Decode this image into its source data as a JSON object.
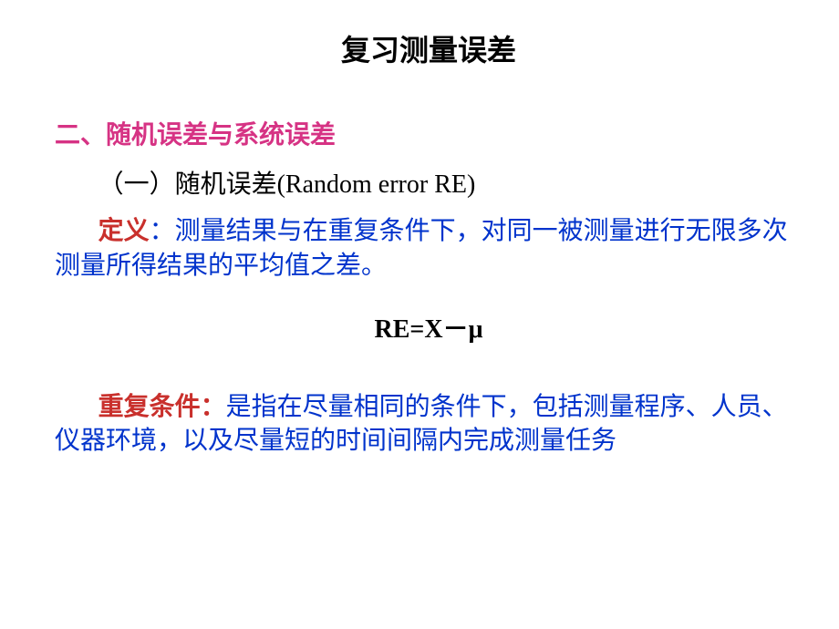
{
  "title": {
    "text": "复习测量误差",
    "color": "#000000",
    "fontsize": 32
  },
  "section": {
    "heading_text": "二、随机误差与系统误差",
    "heading_color": "#d63384",
    "heading_fontsize": 28
  },
  "subheading": {
    "text": "（一）随机误差(Random error  RE)",
    "color": "#000000",
    "fontsize": 28
  },
  "definition": {
    "label": "定义",
    "label_color": "#c9302c",
    "colon": "：",
    "colon_color": "#0033cc",
    "body": "测量结果与在重复条件下，对同一被测量进行无限多次测量所得结果的平均值之差。",
    "body_color": "#0033cc",
    "fontsize": 28
  },
  "formula": {
    "text": "RE=X－μ",
    "color": "#000000",
    "fontsize": 28
  },
  "repeat": {
    "label": "重复条件：",
    "label_color": "#c9302c",
    "body": "是指在尽量相同的条件下，包括测量程序、人员、仪器环境，以及尽量短的时间间隔内完成测量任务",
    "body_color": "#0033cc",
    "fontsize": 28
  },
  "background_color": "#ffffff"
}
